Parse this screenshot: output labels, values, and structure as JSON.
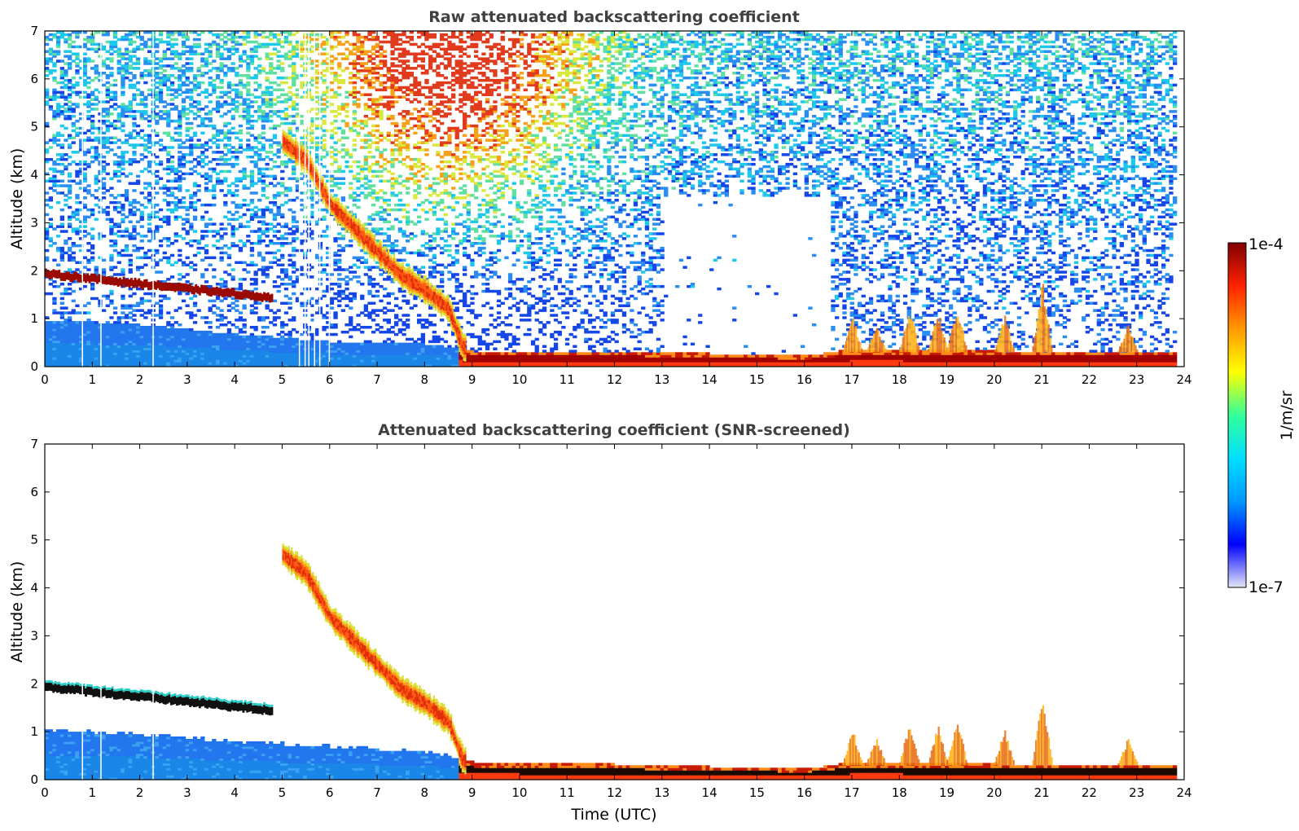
{
  "chart_data": [
    {
      "type": "heatmap",
      "title": "Raw attenuated backscattering coefficient",
      "xlabel": "",
      "ylabel": "Altitude (km)",
      "xlim": [
        0,
        24
      ],
      "ylim": [
        0,
        7
      ],
      "xticks": [
        0,
        1,
        2,
        3,
        4,
        5,
        6,
        7,
        8,
        9,
        10,
        11,
        12,
        13,
        14,
        15,
        16,
        17,
        18,
        19,
        20,
        21,
        22,
        23,
        24
      ],
      "yticks": [
        0,
        1,
        2,
        3,
        4,
        5,
        6,
        7
      ],
      "features": {
        "upper_layer": {
          "t_start": 0,
          "t_end": 4.8,
          "alt_start": 1.85,
          "alt_end": 1.35
        },
        "descending_cloud": [
          [
            5.0,
            4.7
          ],
          [
            5.5,
            4.3
          ],
          [
            6.0,
            3.4
          ],
          [
            6.5,
            2.9
          ],
          [
            7.0,
            2.4
          ],
          [
            7.5,
            1.9
          ],
          [
            8.0,
            1.6
          ],
          [
            8.5,
            1.2
          ],
          [
            8.8,
            0.4
          ]
        ],
        "boundary_layer_top": [
          [
            0,
            0.95
          ],
          [
            2,
            0.85
          ],
          [
            4,
            0.65
          ],
          [
            6,
            0.5
          ],
          [
            8,
            0.45
          ],
          [
            9,
            0.3
          ],
          [
            12,
            0.3
          ],
          [
            16,
            0.2
          ],
          [
            17,
            0.35
          ],
          [
            20,
            0.3
          ],
          [
            22,
            0.3
          ],
          [
            24,
            0.3
          ]
        ],
        "afternoon_convective_plumes": [
          [
            17.0,
            0.8
          ],
          [
            17.5,
            0.6
          ],
          [
            18.2,
            1.0
          ],
          [
            18.8,
            0.9
          ],
          [
            19.2,
            1.1
          ],
          [
            20.2,
            0.8
          ],
          [
            21.0,
            1.5
          ],
          [
            22.8,
            0.6
          ]
        ],
        "no_data_columns": [
          0.78,
          1.17,
          2.27,
          5.35,
          5.47,
          5.55,
          5.67,
          5.78,
          5.98
        ]
      }
    },
    {
      "type": "heatmap",
      "title": "Attenuated backscattering coefficient (SNR-screened)",
      "xlabel": "Time (UTC)",
      "ylabel": "Altitude (km)",
      "xlim": [
        0,
        24
      ],
      "ylim": [
        0,
        7
      ],
      "xticks": [
        0,
        1,
        2,
        3,
        4,
        5,
        6,
        7,
        8,
        9,
        10,
        11,
        12,
        13,
        14,
        15,
        16,
        17,
        18,
        19,
        20,
        21,
        22,
        23,
        24
      ],
      "yticks": [
        0,
        1,
        2,
        3,
        4,
        5,
        6,
        7
      ],
      "features": {
        "upper_layer": {
          "t_start": 0,
          "t_end": 4.8,
          "alt_start": 1.85,
          "alt_end": 1.35
        },
        "descending_cloud": [
          [
            5.0,
            4.7
          ],
          [
            5.5,
            4.3
          ],
          [
            6.0,
            3.4
          ],
          [
            6.5,
            2.9
          ],
          [
            7.0,
            2.4
          ],
          [
            7.5,
            1.9
          ],
          [
            8.0,
            1.6
          ],
          [
            8.5,
            1.2
          ],
          [
            8.8,
            0.4
          ]
        ],
        "boundary_layer_top": [
          [
            0,
            1.0
          ],
          [
            2,
            0.9
          ],
          [
            4,
            0.75
          ],
          [
            6,
            0.65
          ],
          [
            8,
            0.55
          ],
          [
            9,
            0.35
          ],
          [
            12,
            0.3
          ],
          [
            16,
            0.2
          ],
          [
            17,
            0.35
          ],
          [
            20,
            0.3
          ],
          [
            22,
            0.3
          ],
          [
            24,
            0.3
          ]
        ]
      }
    }
  ],
  "colorbar": {
    "label": "1/m/sr",
    "max_label": "1e-4",
    "min_label": "1e-7",
    "scale": "log",
    "colormap": [
      "#e4e6f7",
      "#0000ff",
      "#0099ff",
      "#00e0ff",
      "#33ff99",
      "#ffff00",
      "#ff9900",
      "#ff2200",
      "#800000"
    ]
  }
}
